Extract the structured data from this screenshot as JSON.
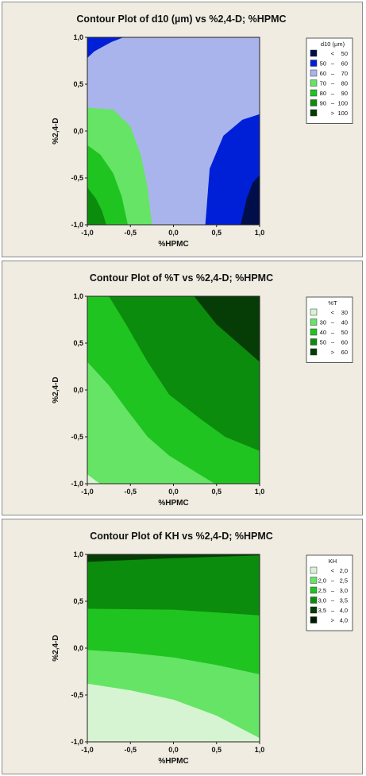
{
  "chart_data": [
    {
      "type": "contour",
      "title": "Contour Plot of d10 (µm) vs %2,4-D; %HPMC",
      "xlabel": "%HPMC",
      "ylabel": "%2,4-D",
      "xlim": [
        -1,
        1
      ],
      "ylim": [
        -1,
        1
      ],
      "x_ticks": [
        "-1,0",
        "-0,5",
        "0,0",
        "0,5",
        "1,0"
      ],
      "y_ticks": [
        "-1,0",
        "-0,5",
        "0,0",
        "0,5",
        "1,0"
      ],
      "legend": {
        "title": "d10 (µm)",
        "position": "right",
        "entries": [
          {
            "label": [
              "<",
              "50"
            ],
            "color": "#000e4a"
          },
          {
            "label": [
              "50",
              "–",
              "60"
            ],
            "color": "#0020d8"
          },
          {
            "label": [
              "60",
              "–",
              "70"
            ],
            "color": "#aab4ec"
          },
          {
            "label": [
              "70",
              "–",
              "80"
            ],
            "color": "#66e466"
          },
          {
            "label": [
              "80",
              "–",
              "90"
            ],
            "color": "#20c420"
          },
          {
            "label": [
              "90",
              "–",
              "100"
            ],
            "color": "#0c8c0c"
          },
          {
            "label": [
              ">",
              "100"
            ],
            "color": "#063c06"
          }
        ]
      },
      "regions": [
        {
          "range": "60-70",
          "polygon": [
            [
              -1,
              1
            ],
            [
              1,
              1
            ],
            [
              1,
              -1
            ],
            [
              -1,
              -1
            ]
          ]
        },
        {
          "range": "50-60",
          "polygon": [
            [
              -1,
              0.78
            ],
            [
              -0.92,
              0.85
            ],
            [
              -0.72,
              0.95
            ],
            [
              -0.58,
              1
            ],
            [
              -1,
              1
            ]
          ]
        },
        {
          "range": "50-60",
          "polygon": [
            [
              0.37,
              -1
            ],
            [
              0.42,
              -0.4
            ],
            [
              0.58,
              -0.05
            ],
            [
              0.8,
              0.12
            ],
            [
              1,
              0.18
            ],
            [
              1,
              -1
            ]
          ]
        },
        {
          "range": "<50",
          "polygon": [
            [
              0.78,
              -1
            ],
            [
              0.85,
              -0.72
            ],
            [
              0.92,
              -0.55
            ],
            [
              1,
              -0.47
            ],
            [
              1,
              -1
            ]
          ]
        },
        {
          "range": "70-80",
          "polygon": [
            [
              -1,
              0.25
            ],
            [
              -0.7,
              0.23
            ],
            [
              -0.5,
              0.05
            ],
            [
              -0.38,
              -0.25
            ],
            [
              -0.3,
              -0.6
            ],
            [
              -0.25,
              -1
            ],
            [
              -1,
              -1
            ]
          ]
        },
        {
          "range": "80-90",
          "polygon": [
            [
              -1,
              -0.15
            ],
            [
              -0.85,
              -0.25
            ],
            [
              -0.7,
              -0.45
            ],
            [
              -0.6,
              -0.7
            ],
            [
              -0.53,
              -1
            ],
            [
              -1,
              -1
            ]
          ]
        },
        {
          "range": "90-100",
          "polygon": [
            [
              -1,
              -0.6
            ],
            [
              -0.9,
              -0.72
            ],
            [
              -0.83,
              -0.85
            ],
            [
              -0.78,
              -1
            ],
            [
              -1,
              -1
            ]
          ]
        }
      ]
    },
    {
      "type": "contour",
      "title": "Contour Plot of %T vs %2,4-D; %HPMC",
      "xlabel": "%HPMC",
      "ylabel": "%2,4-D",
      "xlim": [
        -1,
        1
      ],
      "ylim": [
        -1,
        1
      ],
      "x_ticks": [
        "-1,0",
        "-0,5",
        "0,0",
        "0,5",
        "1,0"
      ],
      "y_ticks": [
        "-1,0",
        "-0,5",
        "0,0",
        "0,5",
        "1,0"
      ],
      "legend": {
        "title": "%T",
        "position": "right",
        "entries": [
          {
            "label": [
              "<",
              "30"
            ],
            "color": "#d6f4d2"
          },
          {
            "label": [
              "30",
              "–",
              "40"
            ],
            "color": "#66e466"
          },
          {
            "label": [
              "40",
              "–",
              "50"
            ],
            "color": "#20c420"
          },
          {
            "label": [
              "50",
              "–",
              "60"
            ],
            "color": "#0c8c0c"
          },
          {
            "label": [
              ">",
              "60"
            ],
            "color": "#063c06"
          }
        ]
      },
      "regions": [
        {
          "range": "50-60",
          "polygon": [
            [
              -1,
              1
            ],
            [
              1,
              1
            ],
            [
              1,
              -1
            ],
            [
              -1,
              -1
            ]
          ]
        },
        {
          "range": "40-50",
          "polygon": [
            [
              -1,
              1
            ],
            [
              -0.75,
              1
            ],
            [
              -0.55,
              0.7
            ],
            [
              -0.3,
              0.3
            ],
            [
              -0.05,
              -0.05
            ],
            [
              0.3,
              -0.3
            ],
            [
              0.6,
              -0.5
            ],
            [
              1,
              -0.65
            ],
            [
              1,
              -1
            ],
            [
              -1,
              -1
            ]
          ]
        },
        {
          "range": "30-40",
          "polygon": [
            [
              -1,
              0.3
            ],
            [
              -0.75,
              0.05
            ],
            [
              -0.55,
              -0.2
            ],
            [
              -0.3,
              -0.5
            ],
            [
              -0.05,
              -0.7
            ],
            [
              0.3,
              -0.9
            ],
            [
              0.48,
              -1
            ],
            [
              -1,
              -1
            ]
          ]
        },
        {
          "range": "<30",
          "polygon": [
            [
              -1,
              -0.9
            ],
            [
              -0.9,
              -0.97
            ],
            [
              -0.85,
              -1
            ],
            [
              -1,
              -1
            ]
          ]
        },
        {
          "range": ">60",
          "polygon": [
            [
              0.24,
              1
            ],
            [
              0.5,
              0.7
            ],
            [
              0.75,
              0.5
            ],
            [
              1,
              0.3
            ],
            [
              1,
              1
            ]
          ]
        }
      ]
    },
    {
      "type": "contour",
      "title": "Contour Plot of KH vs %2,4-D; %HPMC",
      "xlabel": "%HPMC",
      "ylabel": "%2,4-D",
      "xlim": [
        -1,
        1
      ],
      "ylim": [
        -1,
        1
      ],
      "x_ticks": [
        "-1,0",
        "-0,5",
        "0,0",
        "0,5",
        "1,0"
      ],
      "y_ticks": [
        "-1,0",
        "-0,5",
        "0,0",
        "0,5",
        "1,0"
      ],
      "legend": {
        "title": "KH",
        "position": "right",
        "entries": [
          {
            "label": [
              "<",
              "2,0"
            ],
            "color": "#d6f4d2"
          },
          {
            "label": [
              "2,0",
              "–",
              "2,5"
            ],
            "color": "#66e466"
          },
          {
            "label": [
              "2,5",
              "–",
              "3,0"
            ],
            "color": "#20c420"
          },
          {
            "label": [
              "3,0",
              "–",
              "3,5"
            ],
            "color": "#0c8c0c"
          },
          {
            "label": [
              "3,5",
              "–",
              "4,0"
            ],
            "color": "#063c06"
          },
          {
            "label": [
              ">",
              "4,0"
            ],
            "color": "#021a02"
          }
        ]
      },
      "regions": [
        {
          "range": "3,5-4,0",
          "polygon": [
            [
              -1,
              1
            ],
            [
              1,
              1
            ],
            [
              1,
              -1
            ],
            [
              -1,
              -1
            ]
          ]
        },
        {
          "range": "3,0-3,5",
          "polygon": [
            [
              -1,
              0.92
            ],
            [
              0,
              0.96
            ],
            [
              1,
              0.99
            ],
            [
              1,
              -1
            ],
            [
              -1,
              -1
            ]
          ]
        },
        {
          "range": "2,5-3,0",
          "polygon": [
            [
              -1,
              0.42
            ],
            [
              0,
              0.41
            ],
            [
              1,
              0.35
            ],
            [
              1,
              -1
            ],
            [
              -1,
              -1
            ]
          ]
        },
        {
          "range": "2,0-2,5",
          "polygon": [
            [
              -1,
              -0.02
            ],
            [
              -0.5,
              -0.05
            ],
            [
              0,
              -0.1
            ],
            [
              0.5,
              -0.18
            ],
            [
              1,
              -0.28
            ],
            [
              1,
              -1
            ],
            [
              -1,
              -1
            ]
          ]
        },
        {
          "range": "<2,0",
          "polygon": [
            [
              -1,
              -0.38
            ],
            [
              -0.5,
              -0.45
            ],
            [
              0,
              -0.55
            ],
            [
              0.5,
              -0.72
            ],
            [
              1,
              -0.96
            ],
            [
              1,
              -1
            ],
            [
              -1,
              -1
            ]
          ]
        },
        {
          "range": "<2,0",
          "polygon": [
            [
              -1,
              -0.9
            ],
            [
              -0.92,
              -0.95
            ],
            [
              -0.85,
              -1
            ],
            [
              -1,
              -1
            ]
          ]
        }
      ]
    }
  ]
}
